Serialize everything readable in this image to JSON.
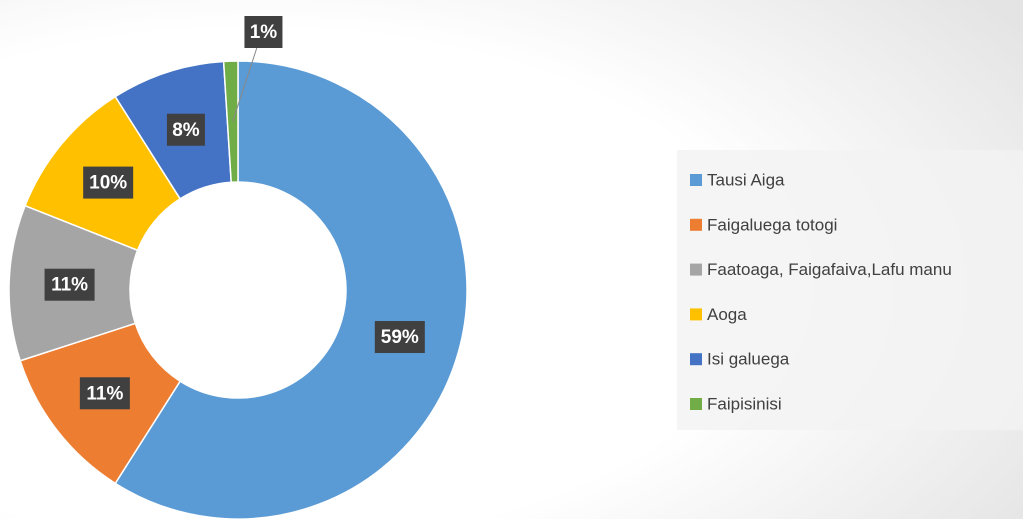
{
  "chart_data": {
    "type": "donut",
    "categories": [
      "Tausi Aiga",
      "Faigaluega totogi",
      "Faatoaga, Faigafaiva,Lafu manu",
      "Aoga",
      "Isi galuega",
      "Faipisinisi"
    ],
    "values": [
      59,
      11,
      11,
      10,
      8,
      1
    ],
    "value_labels": [
      "59%",
      "11%",
      "11%",
      "10%",
      "8%",
      "1%"
    ],
    "colors": [
      "#5b9bd5",
      "#ed7d31",
      "#a5a5a5",
      "#ffc000",
      "#4472c4",
      "#70ad47"
    ],
    "legend": "right"
  }
}
